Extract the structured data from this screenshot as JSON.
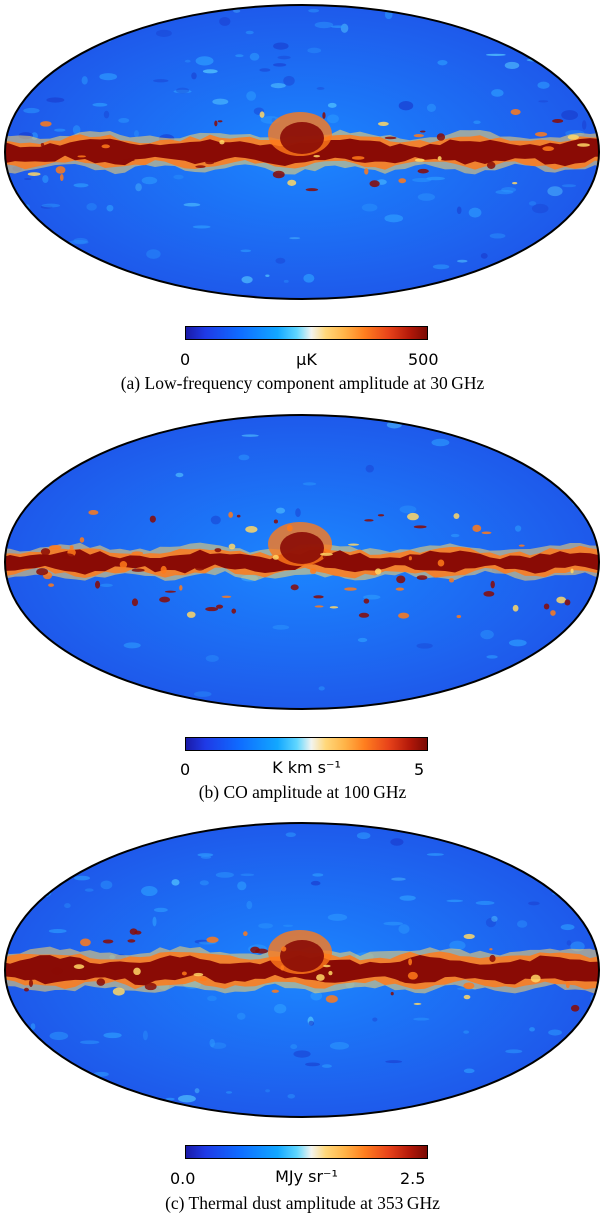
{
  "panels": [
    {
      "id": "a",
      "unit": "μK",
      "tick_min": "0",
      "tick_max": "500",
      "caption": "(a) Low-frequency component amplitude at 30 GHz",
      "band_strength": 0.9,
      "noise_level": 0.6
    },
    {
      "id": "b",
      "unit": "K km s⁻¹",
      "tick_min": "0",
      "tick_max": "5",
      "caption": "(b) CO amplitude at 100 GHz",
      "band_strength": 0.75,
      "noise_level": 0.15
    },
    {
      "id": "c",
      "unit": "MJy sr⁻¹",
      "tick_min": "0.0",
      "tick_max": "2.5",
      "caption": "(c) Thermal dust amplitude at 353 GHz",
      "band_strength": 1.0,
      "noise_level": 0.45
    }
  ],
  "colors": {
    "background_blue": "#1f4fe6",
    "mid_blue": "#1b86ff",
    "band_red": "#8a0b05",
    "band_orange": "#ff7a1a",
    "band_yellow": "#ffd766"
  }
}
